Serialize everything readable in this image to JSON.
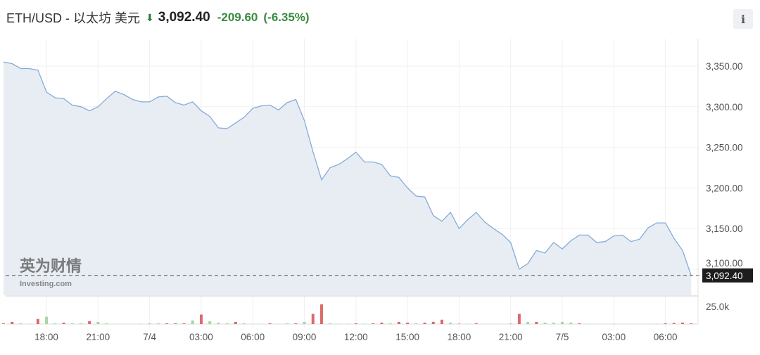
{
  "header": {
    "symbol": "ETH/USD - 以太坊 美元",
    "direction": "down",
    "price": "3,092.40",
    "change": "-209.60",
    "change_pct": "(-6.35%)",
    "info_label": "i"
  },
  "watermark": {
    "logo_cn": "英为财情",
    "logo_en": "Investing.com"
  },
  "colors": {
    "line": "#86abd6",
    "fill": "#e8edf4",
    "up": "#a9d6a6",
    "down": "#dc6b6b",
    "change": "#3a8a3f"
  },
  "chart_data": {
    "type": "area",
    "title": "",
    "ylim": [
      3080,
      3380
    ],
    "y_ticks": [
      {
        "value": 3350,
        "label": "3,350.00"
      },
      {
        "value": 3300,
        "label": "3,300.00"
      },
      {
        "value": 3250,
        "label": "3,250.00"
      },
      {
        "value": 3200,
        "label": "3,200.00"
      },
      {
        "value": 3150,
        "label": "3,150.00"
      },
      {
        "value": 3100,
        "label": "3,100.00"
      }
    ],
    "x_ticks": [
      "18:00",
      "21:00",
      "7/4",
      "03:00",
      "06:00",
      "09:00",
      "12:00",
      "15:00",
      "18:00",
      "21:00",
      "7/5",
      "03:00",
      "06:00"
    ],
    "last_price": {
      "value": 3092.4,
      "label": "3,092.40"
    },
    "grid": true,
    "prices": [
      3355,
      3353,
      3347,
      3347,
      3345,
      3318,
      3311,
      3310,
      3302,
      3300,
      3295,
      3300,
      3310,
      3319,
      3315,
      3309,
      3306,
      3306,
      3312,
      3313,
      3305,
      3302,
      3306,
      3295,
      3288,
      3274,
      3273,
      3280,
      3287,
      3298,
      3301,
      3302,
      3296,
      3305,
      3309,
      3283,
      3245,
      3210,
      3225,
      3229,
      3236,
      3244,
      3232,
      3232,
      3229,
      3215,
      3213,
      3200,
      3190,
      3189,
      3166,
      3159,
      3170,
      3150,
      3161,
      3170,
      3158,
      3150,
      3143,
      3133,
      3100,
      3107,
      3123,
      3120,
      3133,
      3125,
      3135,
      3142,
      3142,
      3133,
      3134,
      3141,
      3142,
      3134,
      3137,
      3151,
      3157,
      3157,
      3138,
      3123,
      3092.4
    ],
    "price_interval": "30 min, 7/3 15:30 – 7/5 07:30",
    "volume": {
      "tick_label": "25.0k",
      "values": [
        1000,
        3000,
        1000,
        500,
        7000,
        10000,
        1000,
        2000,
        1000,
        1000,
        4000,
        3000,
        1000,
        200,
        200,
        200,
        500,
        500,
        1000,
        1000,
        1000,
        1000,
        5000,
        13000,
        4000,
        2000,
        1000,
        3000,
        1000,
        200,
        200,
        1000,
        200,
        500,
        1000,
        3000,
        14000,
        27000,
        1000,
        500,
        500,
        1000,
        500,
        1000,
        2000,
        1000,
        3000,
        2000,
        1000,
        2000,
        3000,
        6000,
        2000,
        500,
        300,
        1000,
        200,
        200,
        200,
        500,
        14000,
        3000,
        3000,
        2000,
        2000,
        3000,
        2000,
        1000,
        200,
        200,
        200,
        500,
        200,
        200,
        200,
        200,
        500,
        1000,
        1500,
        2000,
        1000
      ],
      "direction": [
        "d",
        "d",
        "u",
        "u",
        "d",
        "u",
        "u",
        "d",
        "u",
        "u",
        "d",
        "u",
        "u",
        "u",
        "u",
        "u",
        "u",
        "d",
        "u",
        "d",
        "d",
        "d",
        "u",
        "d",
        "u",
        "u",
        "u",
        "d",
        "u",
        "u",
        "u",
        "d",
        "u",
        "d",
        "d",
        "u",
        "d",
        "d",
        "u",
        "u",
        "u",
        "d",
        "u",
        "d",
        "d",
        "u",
        "d",
        "d",
        "u",
        "d",
        "d",
        "d",
        "u",
        "d",
        "u",
        "d",
        "u",
        "u",
        "u",
        "d",
        "d",
        "u",
        "d",
        "u",
        "u",
        "u",
        "u",
        "d",
        "u",
        "u",
        "u",
        "u",
        "u",
        "u",
        "u",
        "u",
        "u",
        "d",
        "d",
        "d",
        "d"
      ]
    }
  }
}
